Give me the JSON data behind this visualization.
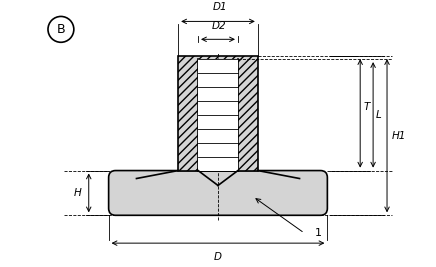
{
  "bg_color": "#ffffff",
  "line_color": "#000000",
  "fill_color": "#d4d4d4",
  "circle_label": "B",
  "dim_labels": {
    "D1": "D1",
    "D2": "D2",
    "D": "D",
    "H": "H",
    "H1": "H1",
    "T": "T",
    "L": "L",
    "part_num": "1"
  },
  "figsize": [
    4.36,
    2.67
  ],
  "dpi": 100
}
